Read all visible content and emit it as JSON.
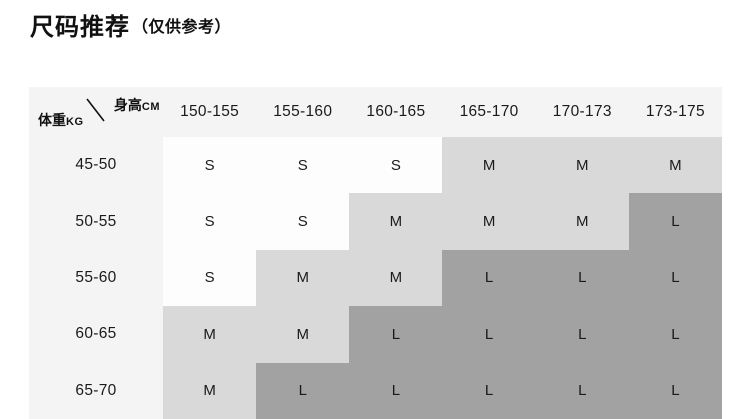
{
  "page": {
    "title": "尺码推荐",
    "title_note": "（仅供参考）"
  },
  "size_table": {
    "corner": {
      "col_axis": "身高",
      "col_unit": "CM",
      "row_axis": "体重",
      "row_unit": "KG"
    },
    "columns": [
      "150-155",
      "155-160",
      "160-165",
      "165-170",
      "170-173",
      "173-175"
    ],
    "rows": [
      {
        "label": "45-50",
        "values": [
          "S",
          "S",
          "S",
          "M",
          "M",
          "M"
        ]
      },
      {
        "label": "50-55",
        "values": [
          "S",
          "S",
          "M",
          "M",
          "M",
          "L"
        ]
      },
      {
        "label": "55-60",
        "values": [
          "S",
          "M",
          "M",
          "L",
          "L",
          "L"
        ]
      },
      {
        "label": "60-65",
        "values": [
          "M",
          "M",
          "L",
          "L",
          "L",
          "L"
        ]
      },
      {
        "label": "65-70",
        "values": [
          "M",
          "L",
          "L",
          "L",
          "L",
          "L"
        ]
      }
    ],
    "colors": {
      "header_bg": "#f4f4f5",
      "size_S_bg": "#fdfdfd",
      "size_M_bg": "#d9d9da",
      "size_L_bg": "#a2a2a3",
      "text": "#1a1a1a"
    }
  },
  "chart_data": {
    "type": "table",
    "title": "尺码推荐（仅供参考）",
    "col_header_axis": "身高CM",
    "row_header_axis": "体重KG",
    "columns": [
      "150-155",
      "155-160",
      "160-165",
      "165-170",
      "170-173",
      "173-175"
    ],
    "rows": [
      "45-50",
      "50-55",
      "55-60",
      "60-65",
      "65-70"
    ],
    "cells": [
      [
        "S",
        "S",
        "S",
        "M",
        "M",
        "M"
      ],
      [
        "S",
        "S",
        "M",
        "M",
        "M",
        "L"
      ],
      [
        "S",
        "M",
        "M",
        "L",
        "L",
        "L"
      ],
      [
        "M",
        "M",
        "L",
        "L",
        "L",
        "L"
      ],
      [
        "M",
        "L",
        "L",
        "L",
        "L",
        "L"
      ]
    ],
    "legend": "cell shading encodes size: S=white, M=light gray, L=dark gray"
  }
}
